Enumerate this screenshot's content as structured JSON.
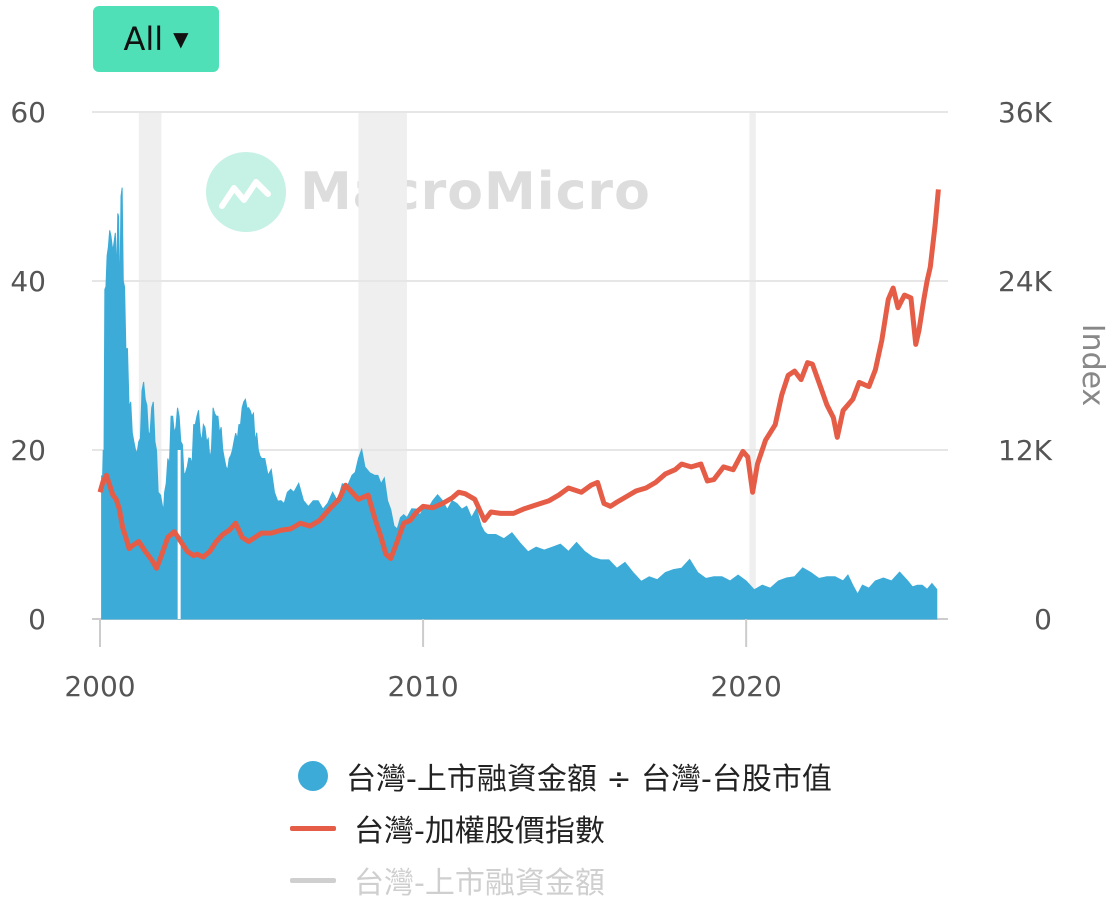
{
  "range_selector": {
    "label": "All",
    "caret": "▼"
  },
  "watermark": {
    "text": "MacroMicro",
    "icon": "chart-line-icon"
  },
  "chart_data": {
    "type": "area",
    "x_ticks": [
      "2000",
      "2010",
      "2020"
    ],
    "xlim": [
      2000,
      2026
    ],
    "y_left": {
      "ticks": [
        "0",
        "20",
        "40",
        "60"
      ],
      "ylim": [
        0,
        60
      ]
    },
    "y_right": {
      "title": "Index",
      "ticks": [
        "0",
        "12K",
        "24K",
        "36K"
      ],
      "ylim": [
        0,
        36000
      ]
    },
    "recession_bands": [
      [
        2001.2,
        2001.9
      ],
      [
        2008.0,
        2009.5
      ],
      [
        2020.1,
        2020.3
      ]
    ],
    "series": [
      {
        "name": "台灣-上市融資金額 ÷ 台灣-台股市值",
        "type": "area",
        "axis": "left",
        "color": "#3cabd8",
        "points": [
          [
            2000.05,
            17
          ],
          [
            2000.1,
            20
          ],
          [
            2000.15,
            39
          ],
          [
            2000.22,
            43
          ],
          [
            2000.3,
            46
          ],
          [
            2000.38,
            44
          ],
          [
            2000.45,
            45
          ],
          [
            2000.5,
            43
          ],
          [
            2000.55,
            48
          ],
          [
            2000.6,
            41
          ],
          [
            2000.65,
            50
          ],
          [
            2000.72,
            40
          ],
          [
            2000.8,
            32
          ],
          [
            2000.9,
            25
          ],
          [
            2001.0,
            22
          ],
          [
            2001.1,
            20
          ],
          [
            2001.2,
            21
          ],
          [
            2001.3,
            27
          ],
          [
            2001.4,
            26
          ],
          [
            2001.5,
            22
          ],
          [
            2001.6,
            25
          ],
          [
            2001.7,
            21
          ],
          [
            2001.8,
            15
          ],
          [
            2001.95,
            13
          ],
          [
            2002.0,
            15
          ],
          [
            2002.1,
            19
          ],
          [
            2002.2,
            24
          ],
          [
            2002.3,
            22
          ],
          [
            2002.4,
            25
          ],
          [
            2002.5,
            21
          ],
          [
            2002.6,
            17
          ],
          [
            2002.7,
            18
          ],
          [
            2002.8,
            19
          ],
          [
            2002.9,
            23
          ],
          [
            2003.0,
            24
          ],
          [
            2003.1,
            22
          ],
          [
            2003.2,
            23
          ],
          [
            2003.3,
            21
          ],
          [
            2003.4,
            19
          ],
          [
            2003.5,
            25
          ],
          [
            2003.6,
            24
          ],
          [
            2003.7,
            22
          ],
          [
            2003.8,
            20
          ],
          [
            2003.9,
            18
          ],
          [
            2004.0,
            19
          ],
          [
            2004.1,
            20
          ],
          [
            2004.2,
            22
          ],
          [
            2004.3,
            23
          ],
          [
            2004.4,
            25
          ],
          [
            2004.5,
            26
          ],
          [
            2004.6,
            25
          ],
          [
            2004.7,
            24
          ],
          [
            2004.8,
            21
          ],
          [
            2004.9,
            20
          ],
          [
            2005.0,
            19
          ],
          [
            2005.2,
            17
          ],
          [
            2005.4,
            15
          ],
          [
            2005.6,
            14
          ],
          [
            2005.8,
            15
          ],
          [
            2006.0,
            15
          ],
          [
            2006.3,
            14
          ],
          [
            2006.6,
            14
          ],
          [
            2006.9,
            13
          ],
          [
            2007.2,
            15
          ],
          [
            2007.5,
            16
          ],
          [
            2007.8,
            17
          ],
          [
            2008.0,
            19
          ],
          [
            2008.2,
            18
          ],
          [
            2008.5,
            17
          ],
          [
            2008.7,
            16
          ],
          [
            2008.9,
            14
          ],
          [
            2009.1,
            11
          ],
          [
            2009.3,
            12
          ],
          [
            2009.5,
            12
          ],
          [
            2009.8,
            13
          ],
          [
            2010.0,
            13
          ],
          [
            2010.3,
            14
          ],
          [
            2010.6,
            14
          ],
          [
            2010.9,
            14
          ],
          [
            2011.2,
            13
          ],
          [
            2011.5,
            12
          ],
          [
            2011.8,
            11
          ],
          [
            2012.0,
            10
          ],
          [
            2012.5,
            9.5
          ],
          [
            2013.0,
            9
          ],
          [
            2013.5,
            8.5
          ],
          [
            2014.0,
            8.5
          ],
          [
            2014.5,
            8
          ],
          [
            2015.0,
            8
          ],
          [
            2015.5,
            7
          ],
          [
            2016.0,
            6
          ],
          [
            2016.5,
            5.5
          ],
          [
            2017.0,
            5
          ],
          [
            2017.5,
            5.5
          ],
          [
            2018.0,
            6
          ],
          [
            2018.5,
            5.5
          ],
          [
            2019.0,
            5
          ],
          [
            2019.5,
            4.5
          ],
          [
            2020.0,
            4.5
          ],
          [
            2020.5,
            4
          ],
          [
            2021.0,
            4.5
          ],
          [
            2021.5,
            5
          ],
          [
            2022.0,
            5.5
          ],
          [
            2022.5,
            5
          ],
          [
            2023.0,
            4.5
          ],
          [
            2023.3,
            4
          ],
          [
            2023.6,
            4
          ],
          [
            2024.0,
            4.5
          ],
          [
            2024.5,
            4.5
          ],
          [
            2025.0,
            4.5
          ],
          [
            2025.3,
            4
          ],
          [
            2025.6,
            3.5
          ],
          [
            2025.9,
            3.5
          ]
        ]
      },
      {
        "name": "台灣-加權股價指數",
        "type": "line",
        "axis": "right",
        "color": "#e55d47",
        "points": [
          [
            2000.0,
            9000
          ],
          [
            2000.1,
            9800
          ],
          [
            2000.2,
            10200
          ],
          [
            2000.3,
            9500
          ],
          [
            2000.4,
            8800
          ],
          [
            2000.5,
            8500
          ],
          [
            2000.6,
            7800
          ],
          [
            2000.7,
            6500
          ],
          [
            2000.8,
            5800
          ],
          [
            2000.9,
            5000
          ],
          [
            2001.0,
            5200
          ],
          [
            2001.2,
            5500
          ],
          [
            2001.4,
            4800
          ],
          [
            2001.6,
            4200
          ],
          [
            2001.75,
            3600
          ],
          [
            2001.9,
            4500
          ],
          [
            2002.1,
            5800
          ],
          [
            2002.3,
            6200
          ],
          [
            2002.5,
            5500
          ],
          [
            2002.7,
            4800
          ],
          [
            2002.9,
            4500
          ],
          [
            2003.0,
            4600
          ],
          [
            2003.2,
            4400
          ],
          [
            2003.4,
            4800
          ],
          [
            2003.6,
            5500
          ],
          [
            2003.8,
            6000
          ],
          [
            2004.0,
            6300
          ],
          [
            2004.2,
            6800
          ],
          [
            2004.4,
            5800
          ],
          [
            2004.6,
            5500
          ],
          [
            2004.8,
            5800
          ],
          [
            2005.0,
            6100
          ],
          [
            2005.3,
            6100
          ],
          [
            2005.6,
            6300
          ],
          [
            2005.9,
            6400
          ],
          [
            2006.2,
            6800
          ],
          [
            2006.5,
            6600
          ],
          [
            2006.8,
            7000
          ],
          [
            2007.1,
            7800
          ],
          [
            2007.4,
            8500
          ],
          [
            2007.6,
            9500
          ],
          [
            2007.8,
            9000
          ],
          [
            2008.0,
            8500
          ],
          [
            2008.3,
            8800
          ],
          [
            2008.5,
            7200
          ],
          [
            2008.7,
            5800
          ],
          [
            2008.85,
            4600
          ],
          [
            2009.0,
            4300
          ],
          [
            2009.2,
            5500
          ],
          [
            2009.4,
            6800
          ],
          [
            2009.6,
            7000
          ],
          [
            2009.8,
            7600
          ],
          [
            2010.0,
            8000
          ],
          [
            2010.3,
            7900
          ],
          [
            2010.6,
            8200
          ],
          [
            2010.9,
            8600
          ],
          [
            2011.1,
            9000
          ],
          [
            2011.3,
            8900
          ],
          [
            2011.6,
            8500
          ],
          [
            2011.9,
            7000
          ],
          [
            2012.1,
            7600
          ],
          [
            2012.4,
            7500
          ],
          [
            2012.8,
            7500
          ],
          [
            2013.1,
            7800
          ],
          [
            2013.5,
            8100
          ],
          [
            2013.9,
            8400
          ],
          [
            2014.2,
            8800
          ],
          [
            2014.5,
            9300
          ],
          [
            2014.9,
            9000
          ],
          [
            2015.2,
            9500
          ],
          [
            2015.4,
            9700
          ],
          [
            2015.6,
            8200
          ],
          [
            2015.8,
            8000
          ],
          [
            2016.0,
            8300
          ],
          [
            2016.3,
            8700
          ],
          [
            2016.6,
            9100
          ],
          [
            2016.9,
            9300
          ],
          [
            2017.2,
            9700
          ],
          [
            2017.5,
            10300
          ],
          [
            2017.8,
            10600
          ],
          [
            2018.0,
            11000
          ],
          [
            2018.3,
            10800
          ],
          [
            2018.6,
            11000
          ],
          [
            2018.8,
            9800
          ],
          [
            2019.0,
            9900
          ],
          [
            2019.3,
            10800
          ],
          [
            2019.6,
            10600
          ],
          [
            2019.9,
            11900
          ],
          [
            2020.05,
            11500
          ],
          [
            2020.2,
            9000
          ],
          [
            2020.35,
            11000
          ],
          [
            2020.6,
            12700
          ],
          [
            2020.9,
            13800
          ],
          [
            2021.1,
            15900
          ],
          [
            2021.3,
            17300
          ],
          [
            2021.5,
            17600
          ],
          [
            2021.7,
            17000
          ],
          [
            2021.9,
            18200
          ],
          [
            2022.05,
            18100
          ],
          [
            2022.3,
            16500
          ],
          [
            2022.5,
            15200
          ],
          [
            2022.7,
            14300
          ],
          [
            2022.82,
            12900
          ],
          [
            2023.0,
            14800
          ],
          [
            2023.3,
            15600
          ],
          [
            2023.5,
            16800
          ],
          [
            2023.8,
            16500
          ],
          [
            2024.0,
            17700
          ],
          [
            2024.2,
            19800
          ],
          [
            2024.4,
            22700
          ],
          [
            2024.55,
            23500
          ],
          [
            2024.7,
            22100
          ],
          [
            2024.9,
            23000
          ],
          [
            2025.1,
            22800
          ],
          [
            2025.25,
            19500
          ],
          [
            2025.35,
            20500
          ],
          [
            2025.5,
            22700
          ],
          [
            2025.6,
            24000
          ],
          [
            2025.7,
            25000
          ],
          [
            2025.85,
            28000
          ],
          [
            2025.95,
            30500
          ]
        ]
      },
      {
        "name": "台灣-上市融資金額",
        "type": "line",
        "color": "#cfcfcf",
        "hidden": true,
        "points": []
      }
    ]
  }
}
